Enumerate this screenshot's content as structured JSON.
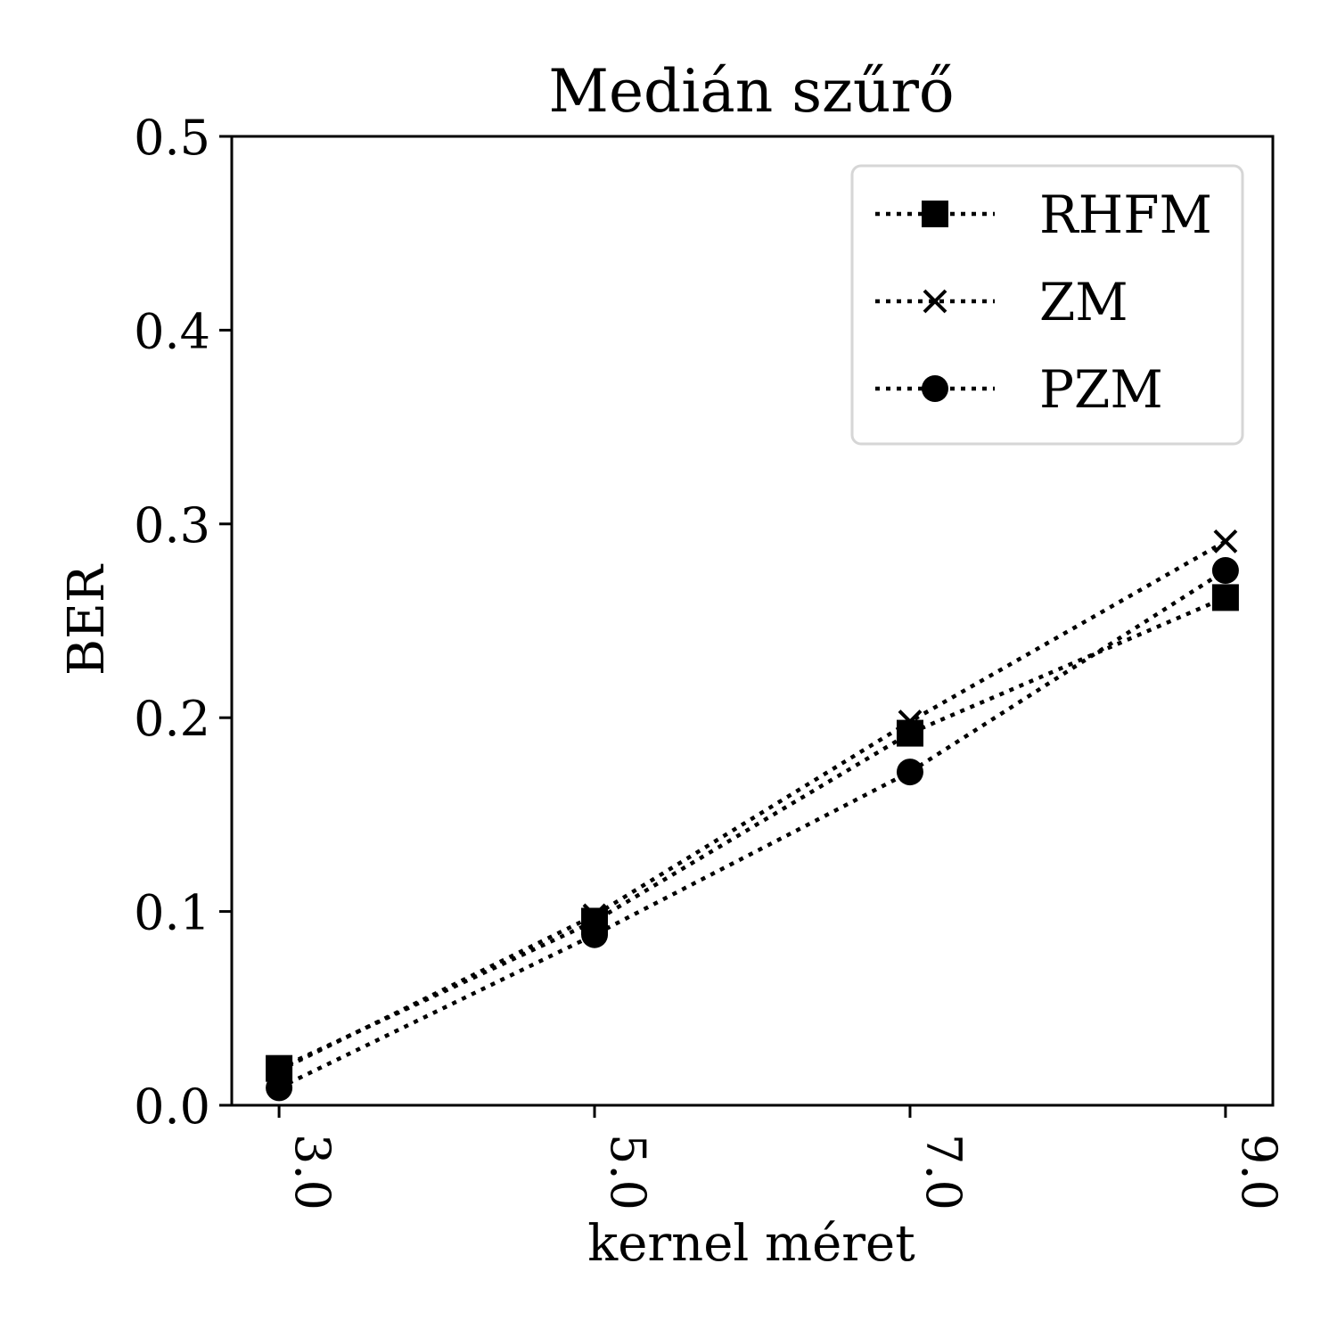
{
  "chart_data": {
    "type": "line",
    "title": "Medián szűrő",
    "xlabel": "kernel méret",
    "ylabel": "BER",
    "x": [
      3,
      5,
      7,
      9
    ],
    "x_tick_labels": [
      "3.0",
      "5.0",
      "7.0",
      "9.0"
    ],
    "y_ticks": [
      0.0,
      0.1,
      0.2,
      0.3,
      0.4,
      0.5
    ],
    "y_tick_labels": [
      "0.0",
      "0.1",
      "0.2",
      "0.3",
      "0.4",
      "0.5"
    ],
    "xlim": [
      2.7,
      9.3
    ],
    "ylim": [
      0.0,
      0.5
    ],
    "grid": false,
    "legend_position": "top-right",
    "line_style": "dotted",
    "series": [
      {
        "name": "RHFM",
        "marker": "square",
        "color": "#000000",
        "values": [
          0.019,
          0.095,
          0.192,
          0.262
        ]
      },
      {
        "name": "ZM",
        "marker": "x",
        "color": "#000000",
        "values": [
          0.018,
          0.098,
          0.198,
          0.291
        ]
      },
      {
        "name": "PZM",
        "marker": "circle",
        "color": "#000000",
        "values": [
          0.009,
          0.088,
          0.172,
          0.276
        ]
      }
    ]
  }
}
